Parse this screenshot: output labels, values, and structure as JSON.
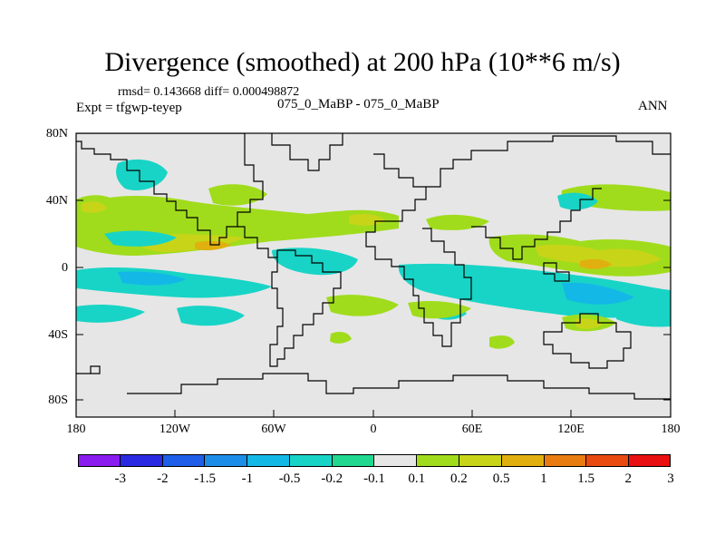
{
  "header": {
    "title": "Divergence (smoothed) at 200 hPa (10**6 m/s)",
    "stats": "rmsd= 0.143668 diff= 0.000498872",
    "experiment": "Expt = tfgwp-teyep",
    "runs": "075_0_MaBP - 075_0_MaBP",
    "season": "ANN"
  },
  "map": {
    "y_axis_labels": [
      "80N",
      "40N",
      "0",
      "40S",
      "80S"
    ],
    "x_axis_labels": [
      "180",
      "120W",
      "60W",
      "0",
      "60E",
      "120E",
      "180"
    ]
  },
  "colorbar": {
    "labels": [
      "-3",
      "-2",
      "-1.5",
      "-1",
      "-0.5",
      "-0.2",
      "-0.1",
      "0.1",
      "0.2",
      "0.5",
      "1",
      "1.5",
      "2",
      "3"
    ],
    "colors": [
      "#8a1cf0",
      "#2a2ae0",
      "#1e5ee8",
      "#1d8ee8",
      "#14b8e6",
      "#18d4c6",
      "#20d890",
      "#e6e6e6",
      "#a0dc1c",
      "#c8d418",
      "#e0b010",
      "#e87c10",
      "#e84a10",
      "#e81010"
    ]
  },
  "colors": {
    "background": "#e6e6e6",
    "neg_weak": "#20d890",
    "neg_mid": "#18d4c6",
    "neg_strong": "#14b8e6",
    "pos_weak": "#a0dc1c",
    "pos_mid": "#c8d418",
    "pos_strong": "#e0b010"
  }
}
